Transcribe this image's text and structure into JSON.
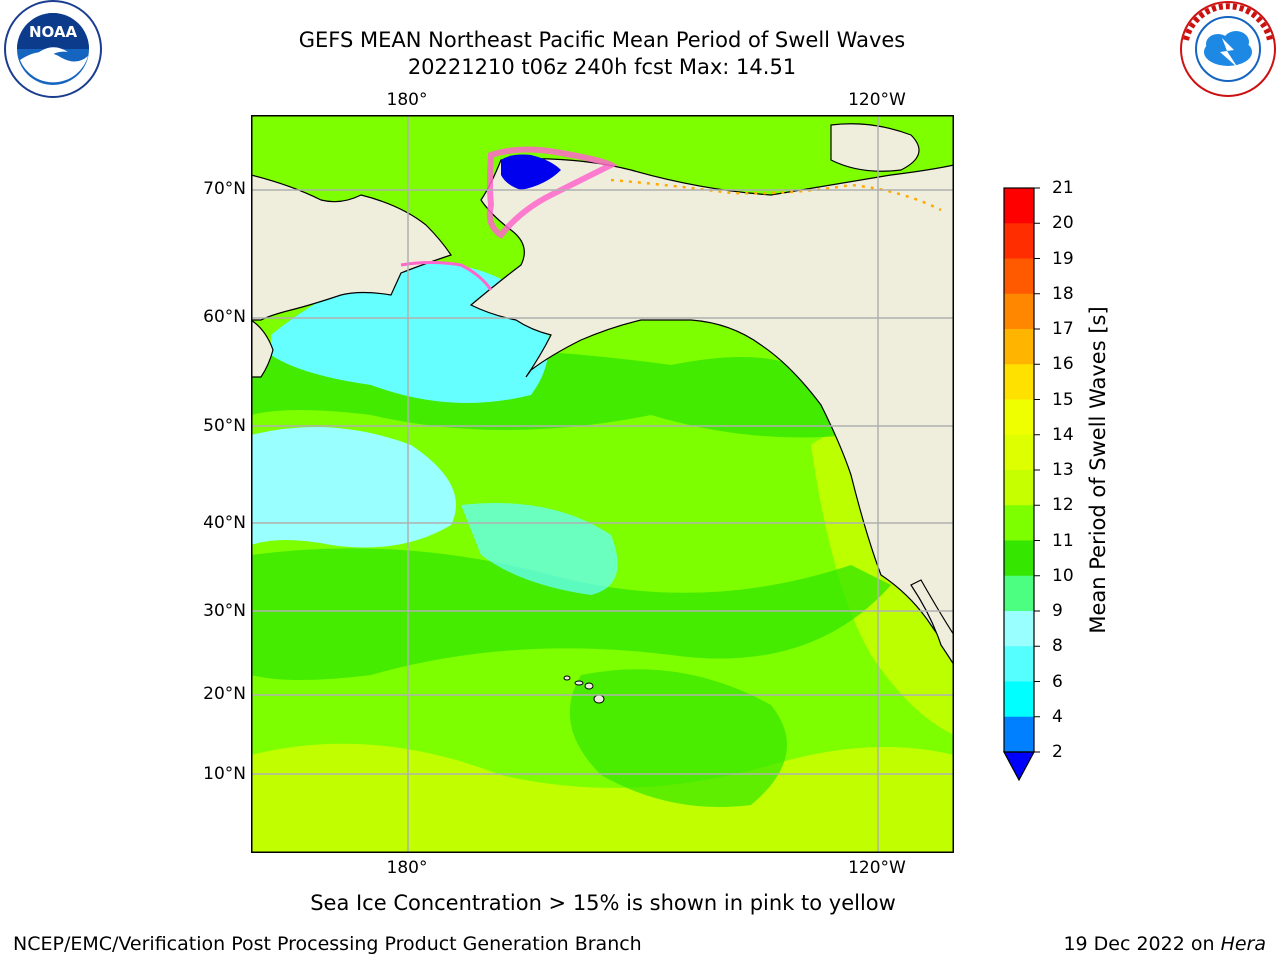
{
  "title": {
    "line1": "GEFS MEAN Northeast Pacific Mean Period of Swell Waves",
    "line2": "20221210 t06z 240h fcst   Max: 14.51"
  },
  "logos": {
    "noaa": "NOAA",
    "noaa_ring": "NATIONAL OCEANIC AND ATMOSPHERIC ADMINISTRATION · U.S. DEPARTMENT OF COMMERCE",
    "nws_ring": "NATIONAL WEATHER SERVICE"
  },
  "map": {
    "lon_labels_top": [
      "180°",
      "120°W"
    ],
    "lon_labels_bottom": [
      "180°",
      "120°W"
    ],
    "lat_labels": [
      "70°N",
      "60°N",
      "50°N",
      "40°N",
      "30°N",
      "20°N",
      "10°N"
    ],
    "colors": {
      "land": "#efeedd",
      "ocean_tropical": "#7dff00",
      "ocean_green": "#34e600",
      "ocean_cyan": "#66ffff",
      "ocean_lightcyan": "#99ffff",
      "ocean_yellow": "#ccff00",
      "ice_pink": "#ff66cc",
      "ice_blue": "#0000ee",
      "grid": "#b0b0b0"
    }
  },
  "colorbar": {
    "label": "Mean Period of Swell Waves [s]",
    "ticks": [
      "21",
      "20",
      "19",
      "18",
      "17",
      "16",
      "15",
      "14",
      "13",
      "12",
      "11",
      "10",
      "9",
      "8",
      "6",
      "4",
      "2"
    ],
    "bins": [
      {
        "color": "#ff0000"
      },
      {
        "color": "#ff2d00"
      },
      {
        "color": "#ff5a00"
      },
      {
        "color": "#ff8700"
      },
      {
        "color": "#ffb400"
      },
      {
        "color": "#ffe100"
      },
      {
        "color": "#f0ff00"
      },
      {
        "color": "#deff00"
      },
      {
        "color": "#c6ff00"
      },
      {
        "color": "#7dff00"
      },
      {
        "color": "#34e600"
      },
      {
        "color": "#4dff80"
      },
      {
        "color": "#99ffff"
      },
      {
        "color": "#55ffff"
      },
      {
        "color": "#00ffff"
      },
      {
        "color": "#0080ff"
      }
    ],
    "under_color": "#0000ff"
  },
  "note": "Sea Ice Concentration > 15% is shown in pink to yellow",
  "footer": {
    "left": "NCEP/EMC/Verification Post Processing Product Generation Branch",
    "date": "19 Dec 2022 on ",
    "machine": "Hera"
  }
}
